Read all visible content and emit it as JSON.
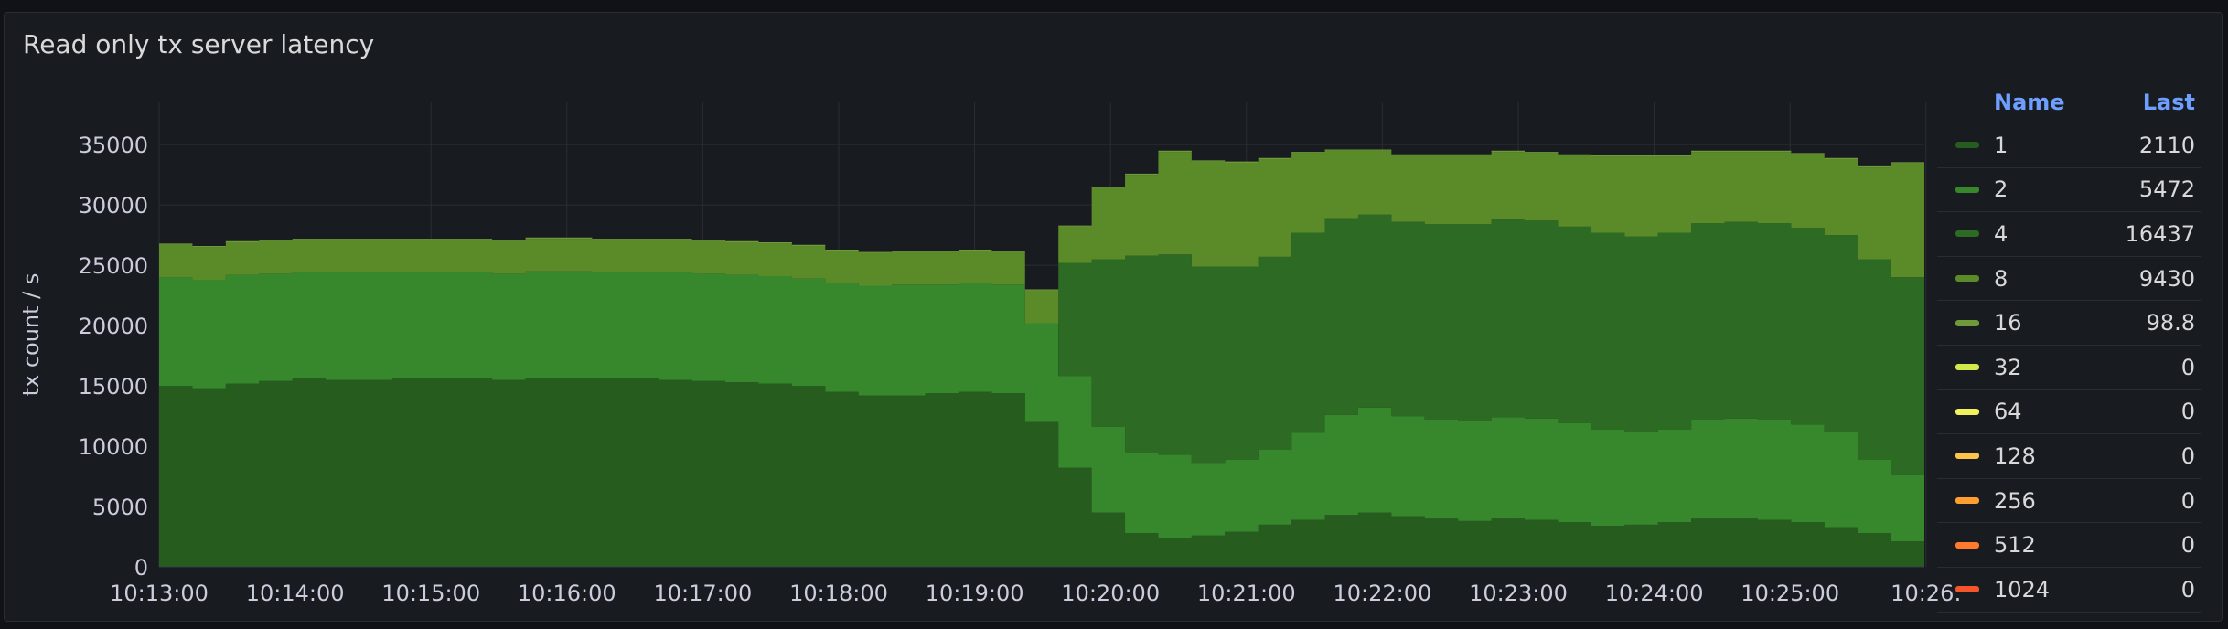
{
  "panel": {
    "title": "Read only tx server latency"
  },
  "legend": {
    "name_header": "Name",
    "last_header": "Last"
  },
  "colors": {
    "background": "#181b1f",
    "grid": "#2a2d33",
    "text": "#ccccdc",
    "header": "#6e9fff"
  },
  "chart_data": {
    "type": "area",
    "stacked": true,
    "ylabel": "tx count / s",
    "ylim": [
      0,
      38500
    ],
    "yticks": [
      0,
      5000,
      10000,
      15000,
      20000,
      25000,
      30000,
      35000
    ],
    "xticks": [
      "10:13:00",
      "10:14:00",
      "10:15:00",
      "10:16:00",
      "10:17:00",
      "10:18:00",
      "10:19:00",
      "10:20:00",
      "10:21:00",
      "10:22:00",
      "10:23:00",
      "10:24:00",
      "10:25:00",
      "10:26:"
    ],
    "x_start": "10:13:00",
    "step_seconds": 15,
    "legend_position": "right",
    "series": [
      {
        "name": "1",
        "last": "2110",
        "color": "#265d1f",
        "values": [
          15000,
          14800,
          15200,
          15400,
          15600,
          15500,
          15500,
          15600,
          15600,
          15600,
          15500,
          15600,
          15600,
          15600,
          15600,
          15500,
          15400,
          15300,
          15200,
          15000,
          14500,
          14200,
          14200,
          14400,
          14500,
          14400,
          12000,
          8200,
          4500,
          2800,
          2400,
          2600,
          2900,
          3500,
          3900,
          4300,
          4500,
          4200,
          4000,
          3800,
          4000,
          3900,
          3700,
          3400,
          3500,
          3700,
          4000,
          4000,
          3900,
          3700,
          3300,
          2800,
          2110
        ]
      },
      {
        "name": "2",
        "last": "5472",
        "color": "#37872d",
        "values": [
          9000,
          9000,
          9000,
          8900,
          8800,
          8900,
          8900,
          8800,
          8800,
          8800,
          8800,
          8900,
          8900,
          8800,
          8800,
          8900,
          8900,
          8900,
          8900,
          8900,
          9000,
          9100,
          9200,
          9000,
          9000,
          9000,
          8200,
          7600,
          7100,
          6700,
          6900,
          6000,
          6000,
          6200,
          7200,
          8300,
          8700,
          8300,
          8200,
          8300,
          8400,
          8400,
          8200,
          8000,
          7700,
          7700,
          8200,
          8300,
          8300,
          8100,
          7900,
          6100,
          5472
        ]
      },
      {
        "name": "4",
        "last": "16437",
        "color": "#2d6a23",
        "values": [
          0,
          0,
          0,
          0,
          0,
          0,
          0,
          0,
          0,
          0,
          0,
          0,
          0,
          0,
          0,
          0,
          0,
          0,
          0,
          0,
          0,
          0,
          0,
          0,
          0,
          0,
          0,
          9400,
          13900,
          16300,
          16600,
          16300,
          16000,
          16000,
          16600,
          16300,
          16000,
          16100,
          16200,
          16300,
          16400,
          16400,
          16300,
          16300,
          16200,
          16300,
          16300,
          16300,
          16300,
          16300,
          16300,
          16600,
          16437
        ]
      },
      {
        "name": "8",
        "last": "9430",
        "color": "#5b8a29",
        "values": [
          2700,
          2700,
          2700,
          2700,
          2700,
          2700,
          2700,
          2700,
          2700,
          2700,
          2700,
          2700,
          2700,
          2700,
          2700,
          2700,
          2700,
          2700,
          2700,
          2700,
          2700,
          2700,
          2700,
          2700,
          2700,
          2700,
          2700,
          3000,
          5900,
          6700,
          8500,
          8700,
          8600,
          8100,
          6600,
          5600,
          5300,
          5500,
          5700,
          5700,
          5600,
          5600,
          5900,
          6300,
          6600,
          6300,
          5900,
          5800,
          5900,
          6100,
          6300,
          7600,
          9430
        ]
      },
      {
        "name": "16",
        "last": "98.8",
        "color": "#6e9a3a",
        "values": [
          100,
          100,
          100,
          100,
          100,
          100,
          100,
          100,
          100,
          100,
          100,
          100,
          100,
          100,
          100,
          100,
          100,
          100,
          100,
          100,
          100,
          100,
          100,
          100,
          100,
          100,
          100,
          100,
          100,
          100,
          100,
          100,
          100,
          100,
          100,
          100,
          100,
          100,
          100,
          100,
          100,
          100,
          100,
          100,
          100,
          100,
          100,
          100,
          100,
          100,
          100,
          100,
          98.8
        ]
      },
      {
        "name": "32",
        "last": "0",
        "color": "#d3e84a"
      },
      {
        "name": "64",
        "last": "0",
        "color": "#f2f25d"
      },
      {
        "name": "128",
        "last": "0",
        "color": "#fbc54a"
      },
      {
        "name": "256",
        "last": "0",
        "color": "#ff9e30"
      },
      {
        "name": "512",
        "last": "0",
        "color": "#ff7a2c"
      },
      {
        "name": "1024",
        "last": "0",
        "color": "#f4552a"
      }
    ]
  }
}
